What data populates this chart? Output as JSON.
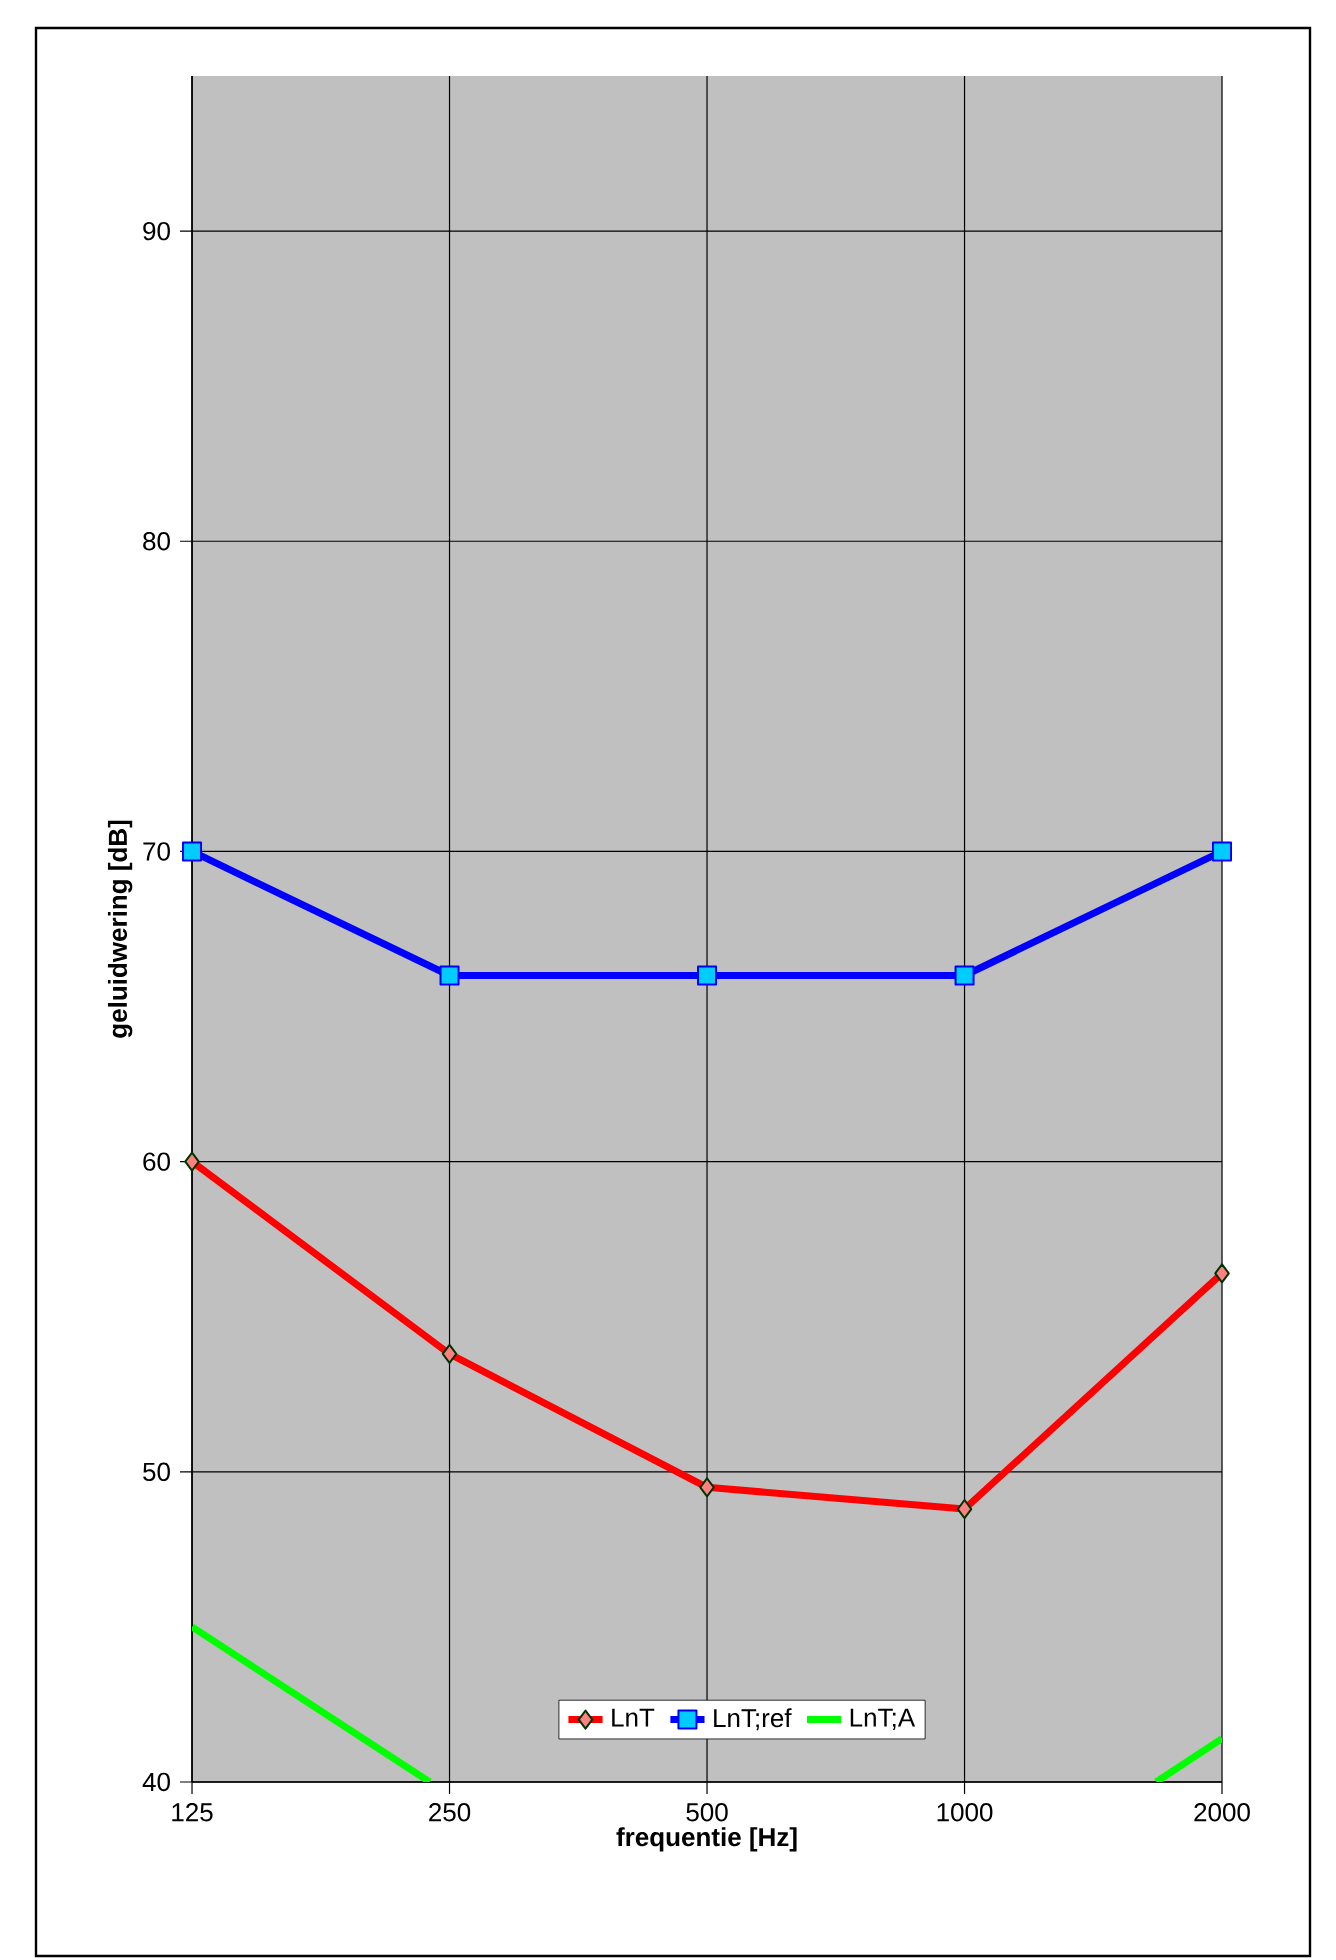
{
  "chart_data": {
    "type": "line",
    "xlabel": "frequentie [Hz]",
    "ylabel": "geluidwering [dB]",
    "x": [
      125,
      250,
      500,
      1000,
      2000
    ],
    "series": [
      {
        "name": "LnT",
        "color": "#ff0000",
        "marker": "diamond",
        "values": [
          60,
          53.8,
          49.5,
          48.8,
          56.4
        ]
      },
      {
        "name": "LnT;ref",
        "color": "#0000ff",
        "marker": "square",
        "values": [
          70,
          66,
          66,
          66,
          70
        ]
      },
      {
        "name": "LnT;A",
        "color": "#00ff00",
        "marker": "none",
        "x": [
          125,
          237,
          500,
          1675,
          2000
        ],
        "values": [
          45,
          40,
          null,
          40,
          41.4
        ]
      }
    ],
    "log": "x",
    "xlim": [
      125,
      2000
    ],
    "xticks": [
      125,
      250,
      500,
      1000,
      2000
    ],
    "ylim": [
      40,
      95
    ],
    "yticks": [
      40,
      50,
      60,
      70,
      80,
      90
    ],
    "grid": true,
    "legend": "bottom"
  }
}
